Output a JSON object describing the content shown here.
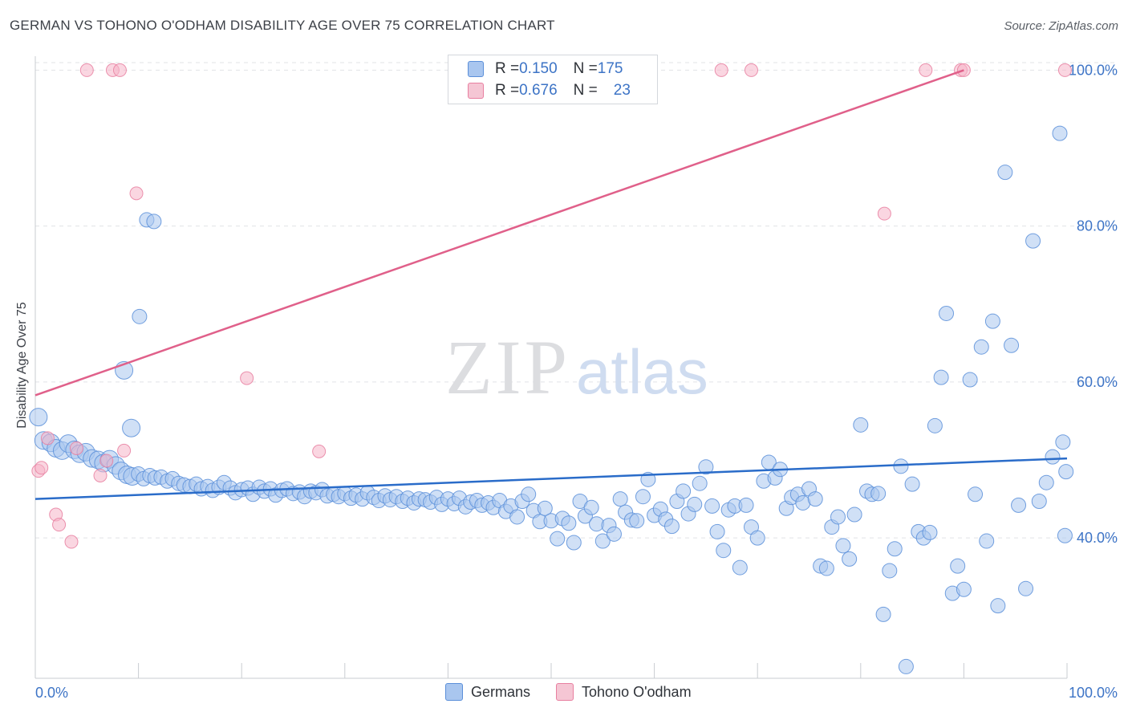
{
  "title": "GERMAN VS TOHONO O'ODHAM DISABILITY AGE OVER 75 CORRELATION CHART",
  "source": "Source: ZipAtlas.com",
  "watermark": {
    "zip": "ZIP",
    "atlas": "atlas"
  },
  "legend": {
    "rows": [
      {
        "r_label": "R = ",
        "r_value": "0.150",
        "n_label": "N = ",
        "n_value": "175",
        "color": "#a9c6ef"
      },
      {
        "r_label": "R = ",
        "r_value": "0.676",
        "n_label": "N = ",
        "n_value": "23",
        "color": "#f5b5c8"
      }
    ]
  },
  "bottom_legend": [
    "Germans",
    "Tohono O'odham"
  ],
  "chart_data": {
    "type": "scatter",
    "title": "GERMAN VS TOHONO O'ODHAM DISABILITY AGE OVER 75 CORRELATION CHART",
    "xlabel": "",
    "ylabel": "Disability Age Over 75",
    "xlim": [
      0,
      100
    ],
    "ylim": [
      22,
      102
    ],
    "x_tick_labels": [
      "0.0%",
      "100.0%"
    ],
    "y_ticks": [
      40,
      60,
      80,
      100
    ],
    "y_tick_labels": [
      "40.0%",
      "60.0%",
      "80.0%",
      "100.0%"
    ],
    "grid": true,
    "legend_position": "top-center",
    "colors": {
      "germans": "#5b8fd9",
      "germans_fill": "#a9c6ef",
      "germans_line": "#2a6cc9",
      "tohono": "#e87fa0",
      "tohono_fill": "#f5b5c8",
      "tohono_line": "#e0608a",
      "tick_label": "#3d74c6"
    },
    "series": [
      {
        "name": "Germans",
        "trend": {
          "x": [
            0,
            100
          ],
          "y": [
            45.0,
            50.2
          ]
        },
        "points": [
          [
            0.3,
            55.5
          ],
          [
            0.8,
            52.5
          ],
          [
            1.5,
            52.2
          ],
          [
            2.0,
            51.5
          ],
          [
            2.6,
            51.2
          ],
          [
            3.2,
            52.1
          ],
          [
            3.8,
            51.3
          ],
          [
            4.3,
            50.8
          ],
          [
            4.9,
            51.0
          ],
          [
            5.5,
            50.2
          ],
          [
            6.1,
            50.0
          ],
          [
            6.6,
            49.6
          ],
          [
            7.2,
            50.1
          ],
          [
            7.8,
            49.3
          ],
          [
            8.3,
            48.6
          ],
          [
            8.9,
            48.1
          ],
          [
            9.4,
            47.9
          ],
          [
            10.0,
            48.2
          ],
          [
            10.5,
            47.6
          ],
          [
            11.1,
            48.0
          ],
          [
            11.6,
            47.7
          ],
          [
            12.2,
            47.8
          ],
          [
            12.8,
            47.3
          ],
          [
            13.3,
            47.6
          ],
          [
            13.9,
            47.0
          ],
          [
            14.4,
            46.8
          ],
          [
            15.0,
            46.6
          ],
          [
            15.6,
            46.9
          ],
          [
            16.1,
            46.3
          ],
          [
            16.7,
            46.6
          ],
          [
            17.2,
            46.1
          ],
          [
            17.8,
            46.5
          ],
          [
            18.3,
            47.1
          ],
          [
            18.9,
            46.4
          ],
          [
            19.4,
            45.8
          ],
          [
            20.0,
            46.2
          ],
          [
            20.6,
            46.4
          ],
          [
            21.1,
            45.6
          ],
          [
            21.7,
            46.5
          ],
          [
            22.2,
            46.0
          ],
          [
            22.8,
            46.3
          ],
          [
            23.3,
            45.5
          ],
          [
            23.9,
            46.1
          ],
          [
            24.4,
            46.3
          ],
          [
            25.0,
            45.7
          ],
          [
            25.6,
            45.9
          ],
          [
            26.1,
            45.3
          ],
          [
            26.7,
            46.0
          ],
          [
            27.2,
            45.8
          ],
          [
            27.8,
            46.2
          ],
          [
            28.3,
            45.4
          ],
          [
            28.9,
            45.6
          ],
          [
            29.4,
            45.3
          ],
          [
            30.0,
            45.7
          ],
          [
            30.6,
            45.1
          ],
          [
            31.1,
            45.5
          ],
          [
            31.7,
            45.0
          ],
          [
            32.2,
            45.8
          ],
          [
            32.8,
            45.2
          ],
          [
            33.3,
            44.8
          ],
          [
            33.9,
            45.4
          ],
          [
            34.4,
            44.9
          ],
          [
            35.0,
            45.3
          ],
          [
            35.6,
            44.7
          ],
          [
            36.1,
            45.1
          ],
          [
            36.7,
            44.5
          ],
          [
            37.2,
            45.0
          ],
          [
            37.8,
            44.9
          ],
          [
            38.3,
            44.6
          ],
          [
            38.9,
            45.2
          ],
          [
            39.4,
            44.3
          ],
          [
            40.0,
            45.0
          ],
          [
            40.6,
            44.4
          ],
          [
            41.1,
            45.1
          ],
          [
            41.7,
            44.0
          ],
          [
            42.2,
            44.6
          ],
          [
            42.8,
            44.8
          ],
          [
            43.3,
            44.2
          ],
          [
            43.9,
            44.5
          ],
          [
            44.4,
            43.9
          ],
          [
            45.0,
            44.8
          ],
          [
            45.6,
            43.4
          ],
          [
            46.1,
            44.1
          ],
          [
            46.7,
            42.7
          ],
          [
            47.2,
            44.7
          ],
          [
            47.8,
            45.6
          ],
          [
            48.3,
            43.5
          ],
          [
            48.9,
            42.1
          ],
          [
            49.4,
            43.8
          ],
          [
            50.0,
            42.2
          ],
          [
            50.6,
            39.9
          ],
          [
            51.1,
            42.5
          ],
          [
            51.7,
            41.9
          ],
          [
            52.2,
            39.4
          ],
          [
            52.8,
            44.7
          ],
          [
            53.3,
            42.8
          ],
          [
            53.9,
            43.9
          ],
          [
            54.4,
            41.8
          ],
          [
            55.0,
            39.6
          ],
          [
            55.6,
            41.6
          ],
          [
            56.1,
            40.5
          ],
          [
            56.7,
            45.0
          ],
          [
            57.2,
            43.3
          ],
          [
            57.8,
            42.3
          ],
          [
            58.3,
            42.2
          ],
          [
            58.9,
            45.3
          ],
          [
            59.4,
            47.5
          ],
          [
            60.0,
            42.9
          ],
          [
            60.6,
            43.7
          ],
          [
            61.1,
            42.4
          ],
          [
            61.7,
            41.5
          ],
          [
            62.2,
            44.7
          ],
          [
            62.8,
            46.0
          ],
          [
            63.3,
            43.1
          ],
          [
            63.9,
            44.3
          ],
          [
            64.4,
            47.0
          ],
          [
            65.0,
            49.1
          ],
          [
            65.6,
            44.1
          ],
          [
            66.1,
            40.8
          ],
          [
            66.7,
            38.4
          ],
          [
            67.2,
            43.6
          ],
          [
            67.8,
            44.1
          ],
          [
            68.3,
            36.2
          ],
          [
            68.9,
            44.2
          ],
          [
            69.4,
            41.4
          ],
          [
            70.0,
            40.0
          ],
          [
            70.6,
            47.3
          ],
          [
            71.1,
            49.7
          ],
          [
            71.7,
            47.7
          ],
          [
            72.2,
            48.8
          ],
          [
            72.8,
            43.8
          ],
          [
            73.3,
            45.2
          ],
          [
            73.9,
            45.6
          ],
          [
            74.4,
            44.5
          ],
          [
            75.0,
            46.3
          ],
          [
            75.6,
            45.0
          ],
          [
            76.1,
            36.4
          ],
          [
            76.7,
            36.1
          ],
          [
            77.2,
            41.4
          ],
          [
            77.8,
            42.7
          ],
          [
            78.3,
            39.0
          ],
          [
            78.9,
            37.3
          ],
          [
            79.4,
            43.0
          ],
          [
            80.0,
            54.5
          ],
          [
            80.6,
            46.0
          ],
          [
            81.1,
            45.6
          ],
          [
            81.7,
            45.7
          ],
          [
            82.2,
            30.2
          ],
          [
            82.8,
            35.8
          ],
          [
            83.3,
            38.6
          ],
          [
            83.9,
            49.2
          ],
          [
            84.4,
            23.5
          ],
          [
            85.0,
            46.9
          ],
          [
            85.6,
            40.8
          ],
          [
            86.1,
            40.0
          ],
          [
            86.7,
            40.7
          ],
          [
            87.2,
            54.4
          ],
          [
            87.8,
            60.6
          ],
          [
            88.3,
            68.8
          ],
          [
            88.9,
            32.9
          ],
          [
            89.4,
            36.4
          ],
          [
            90.0,
            33.4
          ],
          [
            90.6,
            60.3
          ],
          [
            91.1,
            45.6
          ],
          [
            91.7,
            64.5
          ],
          [
            92.2,
            39.6
          ],
          [
            92.8,
            67.8
          ],
          [
            93.3,
            31.3
          ],
          [
            94.0,
            86.9
          ],
          [
            94.6,
            64.7
          ],
          [
            95.3,
            44.2
          ],
          [
            96.0,
            33.5
          ],
          [
            96.7,
            78.1
          ],
          [
            97.3,
            44.7
          ],
          [
            98.0,
            47.1
          ],
          [
            98.6,
            50.4
          ],
          [
            99.3,
            91.9
          ],
          [
            99.6,
            52.3
          ],
          [
            99.8,
            40.3
          ],
          [
            99.9,
            48.5
          ],
          [
            8.6,
            61.5
          ],
          [
            9.3,
            54.1
          ],
          [
            10.1,
            68.4
          ],
          [
            10.8,
            80.8
          ],
          [
            11.5,
            80.6
          ]
        ]
      },
      {
        "name": "Tohono O'odham",
        "trend": {
          "x": [
            0,
            90
          ],
          "y": [
            58.3,
            100.0
          ]
        },
        "points": [
          [
            0.3,
            48.6
          ],
          [
            0.6,
            49.0
          ],
          [
            1.2,
            52.8
          ],
          [
            2.0,
            43.0
          ],
          [
            2.3,
            41.7
          ],
          [
            3.5,
            39.5
          ],
          [
            4.0,
            51.5
          ],
          [
            5.0,
            100.0
          ],
          [
            6.3,
            48.0
          ],
          [
            6.9,
            49.9
          ],
          [
            7.5,
            100.0
          ],
          [
            8.2,
            100.0
          ],
          [
            8.6,
            51.2
          ],
          [
            9.8,
            84.2
          ],
          [
            20.5,
            60.5
          ],
          [
            27.5,
            51.1
          ],
          [
            66.5,
            100.0
          ],
          [
            69.4,
            100.0
          ],
          [
            82.3,
            81.6
          ],
          [
            86.3,
            100.0
          ],
          [
            89.7,
            100.0
          ],
          [
            90.0,
            100.0
          ],
          [
            99.8,
            100.0
          ]
        ]
      }
    ]
  }
}
